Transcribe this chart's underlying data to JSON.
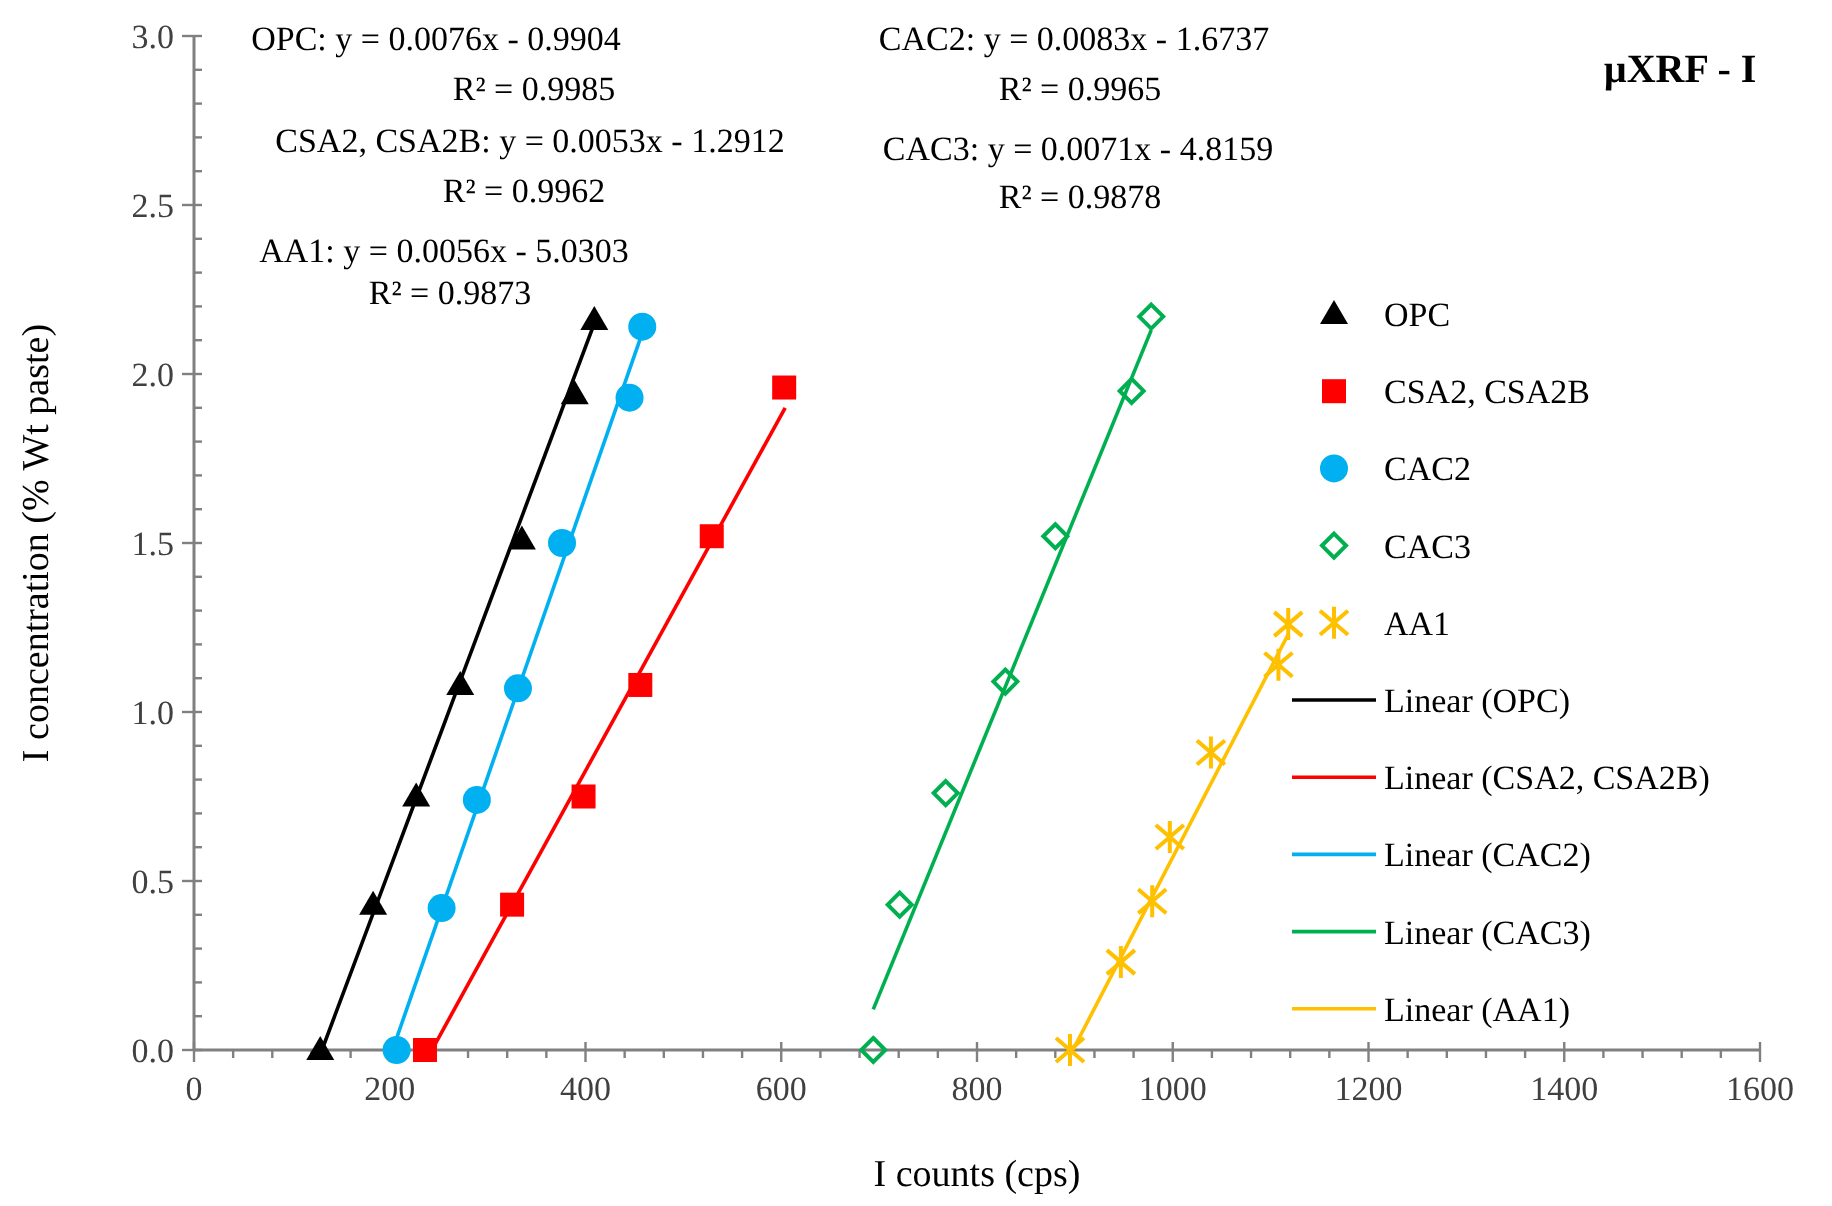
{
  "chart_data": {
    "type": "scatter",
    "title": "µXRF - I",
    "xlabel": "I counts (cps)",
    "ylabel": "I concentration (% Wt paste)",
    "xlim": [
      0,
      1600
    ],
    "ylim": [
      0,
      3
    ],
    "xticks": [
      0,
      {
        "value": 40,
        "label": null
      },
      {
        "value": 80,
        "label": null
      },
      {
        "value": 120,
        "label": null
      },
      {
        "value": 160,
        "label": null
      },
      200,
      {
        "value": 240,
        "label": null
      },
      {
        "value": 280,
        "label": null
      },
      {
        "value": 320,
        "label": null
      },
      {
        "value": 360,
        "label": null
      },
      400,
      {
        "value": 440,
        "label": null
      },
      {
        "value": 480,
        "label": null
      },
      {
        "value": 520,
        "label": null
      },
      {
        "value": 560,
        "label": null
      },
      600,
      {
        "value": 640,
        "label": null
      },
      {
        "value": 680,
        "label": null
      },
      {
        "value": 720,
        "label": null
      },
      {
        "value": 760,
        "label": null
      },
      800,
      {
        "value": 840,
        "label": null
      },
      {
        "value": 880,
        "label": null
      },
      {
        "value": 920,
        "label": null
      },
      {
        "value": 960,
        "label": null
      },
      1000,
      {
        "value": 1040,
        "label": null
      },
      {
        "value": 1080,
        "label": null
      },
      {
        "value": 1120,
        "label": null
      },
      {
        "value": 1160,
        "label": null
      },
      1200,
      {
        "value": 1240,
        "label": null
      },
      {
        "value": 1280,
        "label": null
      },
      {
        "value": 1320,
        "label": null
      },
      {
        "value": 1360,
        "label": null
      },
      1400,
      {
        "value": 1440,
        "label": null
      },
      {
        "value": 1480,
        "label": null
      },
      {
        "value": 1520,
        "label": null
      },
      {
        "value": 1560,
        "label": null
      },
      1600
    ],
    "yticks": [
      {
        "value": 0,
        "label": "0.0"
      },
      {
        "value": 0.1,
        "label": null
      },
      {
        "value": 0.2,
        "label": null
      },
      {
        "value": 0.3,
        "label": null
      },
      {
        "value": 0.4,
        "label": null
      },
      {
        "value": 0.5,
        "label": "0.5"
      },
      {
        "value": 0.6,
        "label": null
      },
      {
        "value": 0.7,
        "label": null
      },
      {
        "value": 0.8,
        "label": null
      },
      {
        "value": 0.9,
        "label": null
      },
      {
        "value": 1,
        "label": "1.0"
      },
      {
        "value": 1.1,
        "label": null
      },
      {
        "value": 1.2,
        "label": null
      },
      {
        "value": 1.3,
        "label": null
      },
      {
        "value": 1.4,
        "label": null
      },
      {
        "value": 1.5,
        "label": "1.5"
      },
      {
        "value": 1.6,
        "label": null
      },
      {
        "value": 1.7,
        "label": null
      },
      {
        "value": 1.8,
        "label": null
      },
      {
        "value": 1.9,
        "label": null
      },
      {
        "value": 2,
        "label": "2.0"
      },
      {
        "value": 2.1,
        "label": null
      },
      {
        "value": 2.2,
        "label": null
      },
      {
        "value": 2.3,
        "label": null
      },
      {
        "value": 2.4,
        "label": null
      },
      {
        "value": 2.5,
        "label": "2.5"
      },
      {
        "value": 2.6,
        "label": null
      },
      {
        "value": 2.7,
        "label": null
      },
      {
        "value": 2.8,
        "label": null
      },
      {
        "value": 2.9,
        "label": null
      },
      {
        "value": 3,
        "label": "3.0"
      }
    ],
    "grid": false,
    "legend": "right",
    "series": [
      {
        "name": "OPC",
        "marker": "triangle",
        "color": "#000000",
        "x": [
          129,
          183,
          227,
          272,
          335,
          389,
          409
        ],
        "values": [
          0,
          0.43,
          0.75,
          1.08,
          1.51,
          1.94,
          2.16
        ]
      },
      {
        "name": "CSA2, CSA2B",
        "marker": "square",
        "color": "#ff0000",
        "x": [
          236,
          325,
          398,
          456,
          529,
          603
        ],
        "values": [
          0,
          0.43,
          0.75,
          1.08,
          1.52,
          1.96
        ]
      },
      {
        "name": "CAC2",
        "marker": "circle",
        "color": "#00b0f0",
        "x": [
          207,
          253,
          289,
          331,
          376,
          445,
          458
        ],
        "values": [
          0,
          0.42,
          0.74,
          1.07,
          1.5,
          1.93,
          2.14
        ]
      },
      {
        "name": "CAC3",
        "marker": "diamond",
        "color": "#00b050",
        "x": [
          694,
          721,
          768,
          829,
          880,
          958,
          978
        ],
        "values": [
          0,
          0.43,
          0.76,
          1.09,
          1.52,
          1.95,
          2.17
        ]
      },
      {
        "name": "AA1",
        "marker": "cross",
        "color": "#ffc000",
        "x": [
          895,
          947,
          979,
          997,
          1039,
          1108,
          1118
        ],
        "values": [
          0,
          0.26,
          0.44,
          0.63,
          0.88,
          1.14,
          1.26
        ]
      },
      {
        "name": "Linear (OPC)",
        "type": "line",
        "marker": "none",
        "color": "#000000",
        "x": [
          132,
          409
        ],
        "values": [
          0.01,
          2.15
        ]
      },
      {
        "name": "Linear (CSA2, CSA2B)",
        "type": "line",
        "marker": "none",
        "color": "#ff0000",
        "x": [
          245,
          604
        ],
        "values": [
          0.01,
          1.9
        ]
      },
      {
        "name": "Linear (CAC2)",
        "type": "line",
        "marker": "none",
        "color": "#00b0f0",
        "x": [
          204,
          459
        ],
        "values": [
          0.01,
          2.13
        ]
      },
      {
        "name": "Linear (CAC3)",
        "type": "line",
        "marker": "none",
        "color": "#00b050",
        "x": [
          694,
          978
        ],
        "values": [
          0.12,
          2.13
        ]
      },
      {
        "name": "Linear (AA1)",
        "type": "line",
        "marker": "none",
        "color": "#ffc000",
        "x": [
          898,
          1118
        ],
        "values": [
          0,
          1.23
        ]
      }
    ],
    "annotations": [
      "OPC: y = 0.0076x - 0.9904",
      "R² = 0.9985",
      "CSA2, CSA2B: y = 0.0053x - 1.2912",
      "R² = 0.9962",
      "AA1: y = 0.0056x - 5.0303",
      "R² = 0.9873",
      "CAC2: y = 0.0083x - 1.6737",
      "R² = 0.9965",
      "CAC3: y = 0.0071x - 4.8159",
      "R² = 0.9878"
    ]
  }
}
